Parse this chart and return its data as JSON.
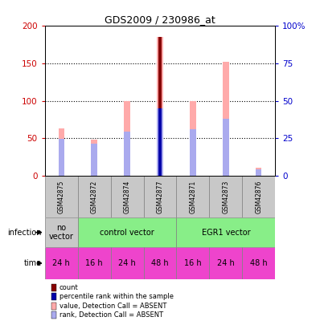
{
  "title": "GDS2009 / 230986_at",
  "samples": [
    "GSM42875",
    "GSM42872",
    "GSM42874",
    "GSM42877",
    "GSM42871",
    "GSM42873",
    "GSM42876"
  ],
  "values_pink": [
    63,
    48,
    99,
    185,
    99,
    152,
    10
  ],
  "values_lightblue": [
    49,
    43,
    59,
    90,
    62,
    76,
    8
  ],
  "values_darkred": [
    0,
    0,
    0,
    185,
    0,
    0,
    0
  ],
  "values_darkblue": [
    0,
    0,
    0,
    90,
    0,
    0,
    0
  ],
  "ylim": [
    0,
    200
  ],
  "yticks_left": [
    0,
    50,
    100,
    150,
    200
  ],
  "yticks_right": [
    0,
    25,
    50,
    75,
    100
  ],
  "ylabel_left_color": "#cc0000",
  "ylabel_right_color": "#0000cc",
  "time_labels": [
    "24 h",
    "16 h",
    "24 h",
    "48 h",
    "16 h",
    "24 h",
    "48 h"
  ],
  "time_bg_color": "#ee44cc",
  "pink_color": "#ffaaaa",
  "lightblue_color": "#aaaaee",
  "darkred_color": "#880000",
  "darkblue_color": "#0000aa",
  "sample_bg_color": "#c8c8c8",
  "no_vector_color": "#c8c8c8",
  "control_vector_color": "#88ee88",
  "egr1_vector_color": "#88ee88",
  "legend_items": [
    {
      "color": "#880000",
      "label": "count"
    },
    {
      "color": "#0000aa",
      "label": "percentile rank within the sample"
    },
    {
      "color": "#ffaaaa",
      "label": "value, Detection Call = ABSENT"
    },
    {
      "color": "#aaaaee",
      "label": "rank, Detection Call = ABSENT"
    }
  ]
}
